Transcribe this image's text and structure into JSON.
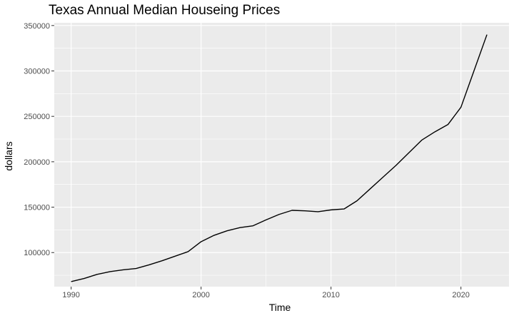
{
  "chart_data": {
    "type": "line",
    "title": "Texas Annual Median Houseing Prices",
    "xlabel": "Time",
    "ylabel": "dollars",
    "xlim": [
      1988.7,
      2023.7
    ],
    "ylim": [
      62500,
      353000
    ],
    "x_ticks": [
      1990,
      2000,
      2010,
      2020
    ],
    "y_ticks": [
      100000,
      150000,
      200000,
      250000,
      300000,
      350000
    ],
    "x_tick_labels": [
      "1990",
      "2000",
      "2010",
      "2020"
    ],
    "y_tick_labels": [
      "100000",
      "150000",
      "200000",
      "250000",
      "300000",
      "350000"
    ],
    "grid": true,
    "legend": "none",
    "colors": {
      "panel": "#ebebeb",
      "grid_major": "#ffffff",
      "line": "#000000"
    },
    "series": [
      {
        "x": [
          1990,
          1991,
          1992,
          1993,
          1994,
          1995,
          1996,
          1997,
          1998,
          1999,
          2000,
          2001,
          2002,
          2003,
          2004,
          2005,
          2006,
          2007,
          2008,
          2009,
          2010,
          2011,
          2012,
          2013,
          2014,
          2015,
          2016,
          2017,
          2018,
          2019,
          2020,
          2021,
          2022
        ],
        "y": [
          68000,
          71500,
          76000,
          79000,
          81000,
          82500,
          86500,
          91000,
          96000,
          101000,
          112000,
          119000,
          124000,
          127500,
          129500,
          136000,
          142000,
          146500,
          146000,
          145000,
          147000,
          148000,
          157000,
          170000,
          183000,
          196000,
          210000,
          224000,
          233000,
          241000,
          260000,
          300000,
          340000
        ]
      }
    ]
  }
}
